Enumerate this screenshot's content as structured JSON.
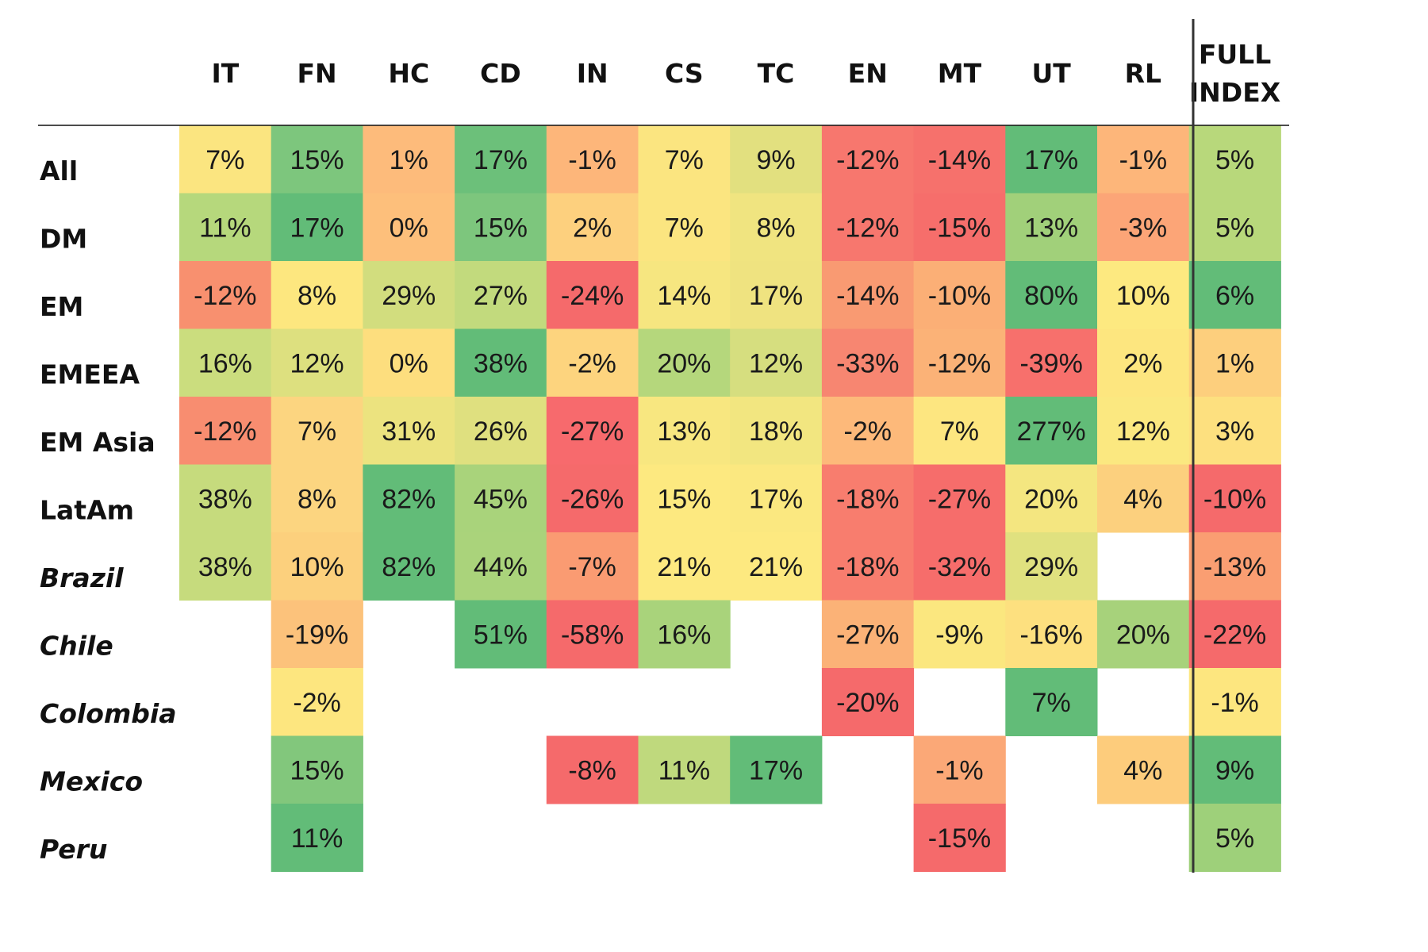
{
  "chart_data": {
    "type": "heatmap",
    "title": "",
    "columns": [
      "IT",
      "FN",
      "HC",
      "CD",
      "IN",
      "CS",
      "TC",
      "EN",
      "MT",
      "UT",
      "RL",
      "FULL INDEX"
    ],
    "rows": [
      {
        "label": "All",
        "italic": false,
        "values": [
          7,
          15,
          1,
          17,
          -1,
          7,
          9,
          -12,
          -14,
          17,
          -1,
          5
        ]
      },
      {
        "label": "DM",
        "italic": false,
        "values": [
          11,
          17,
          0,
          15,
          2,
          7,
          8,
          -12,
          -15,
          13,
          -3,
          5
        ]
      },
      {
        "label": "EM",
        "italic": false,
        "values": [
          -12,
          8,
          29,
          27,
          -24,
          14,
          17,
          -14,
          -10,
          80,
          10,
          6
        ]
      },
      {
        "label": "EMEEA",
        "italic": false,
        "values": [
          16,
          12,
          0,
          38,
          -2,
          20,
          12,
          -33,
          -12,
          -39,
          2,
          1
        ]
      },
      {
        "label": "EM Asia",
        "italic": false,
        "values": [
          -12,
          7,
          31,
          26,
          -27,
          13,
          18,
          -2,
          7,
          277,
          12,
          3
        ]
      },
      {
        "label": "LatAm",
        "italic": false,
        "values": [
          38,
          8,
          82,
          45,
          -26,
          15,
          17,
          -18,
          -27,
          20,
          4,
          -10
        ]
      },
      {
        "label": "Brazil",
        "italic": true,
        "values": [
          38,
          10,
          82,
          44,
          -7,
          21,
          21,
          -18,
          -32,
          29,
          null,
          -13
        ]
      },
      {
        "label": "Chile",
        "italic": true,
        "values": [
          null,
          -19,
          null,
          51,
          -58,
          16,
          null,
          -27,
          -9,
          -16,
          20,
          -22
        ]
      },
      {
        "label": "Colombia",
        "italic": true,
        "values": [
          null,
          -2,
          null,
          null,
          null,
          null,
          null,
          -20,
          null,
          7,
          null,
          -1
        ]
      },
      {
        "label": "Mexico",
        "italic": true,
        "values": [
          null,
          15,
          null,
          null,
          -8,
          11,
          17,
          null,
          -1,
          null,
          4,
          9
        ]
      },
      {
        "label": "Peru",
        "italic": true,
        "values": [
          null,
          11,
          null,
          null,
          null,
          null,
          null,
          null,
          -15,
          null,
          null,
          5
        ]
      }
    ],
    "value_unit": "%",
    "cell_colors": [
      [
        "#fbe580",
        "#7dc67d",
        "#fdbb7b",
        "#6cc07a",
        "#fdb67a",
        "#fbe580",
        "#e2e07f",
        "#f7776e",
        "#f6716c",
        "#62bc78",
        "#fdb67a",
        "#b8d87b"
      ],
      [
        "#b6d87c",
        "#62bc78",
        "#fdbf7b",
        "#7dc67d",
        "#fdd07e",
        "#fbe580",
        "#f0e480",
        "#f7776e",
        "#f66e6b",
        "#a1d07a",
        "#fca577",
        "#b8d87b"
      ],
      [
        "#f8906f",
        "#fde77f",
        "#d2dd7e",
        "#c2da7d",
        "#f56a6b",
        "#f6e680",
        "#efe380",
        "#f99a72",
        "#fbaf76",
        "#62bc78",
        "#fde980",
        "#62bc78"
      ],
      [
        "#cbdd7e",
        "#dde07f",
        "#fdde7e",
        "#62bc78",
        "#fdd47e",
        "#b5d77c",
        "#d6de7f",
        "#f78671",
        "#fbb277",
        "#f7706c",
        "#fde67f",
        "#fdcf7d"
      ],
      [
        "#f88d70",
        "#fcd580",
        "#ece37f",
        "#dfe07f",
        "#f76a6d",
        "#f8e780",
        "#f2e680",
        "#fdb97a",
        "#fde680",
        "#62bc78",
        "#fbe880",
        "#fde07f"
      ],
      [
        "#c6db7d",
        "#fcd580",
        "#62bc78",
        "#a9d37b",
        "#f56a6b",
        "#fde980",
        "#fbe880",
        "#f87d6e",
        "#f66d6b",
        "#f4e680",
        "#fcd07e",
        "#f56a6b"
      ],
      [
        "#c6db7d",
        "#fcd07d",
        "#62bc78",
        "#aad37b",
        "#fa9b72",
        "#fde980",
        "#fde980",
        "#f87d6e",
        "#f66d6b",
        "#e0e17f",
        null,
        "#fa9e72"
      ],
      [
        null,
        "#fcc27b",
        null,
        "#62bc78",
        "#f56a6b",
        "#a9d37b",
        null,
        "#fbb277",
        "#fbe77f",
        "#fde07f",
        "#a7d27b",
        "#f56a6b"
      ],
      [
        null,
        "#fde67f",
        null,
        null,
        null,
        null,
        null,
        "#f56a6b",
        null,
        "#62bc78",
        null,
        "#fde67f"
      ],
      [
        null,
        "#82c77c",
        null,
        null,
        "#f56a6b",
        "#bfd97d",
        "#62bc78",
        null,
        "#fba877",
        null,
        "#fdcc7c",
        "#62bc78"
      ],
      [
        null,
        "#62bc78",
        null,
        null,
        null,
        null,
        null,
        null,
        "#f56a6b",
        null,
        null,
        "#9ed07a"
      ]
    ]
  }
}
